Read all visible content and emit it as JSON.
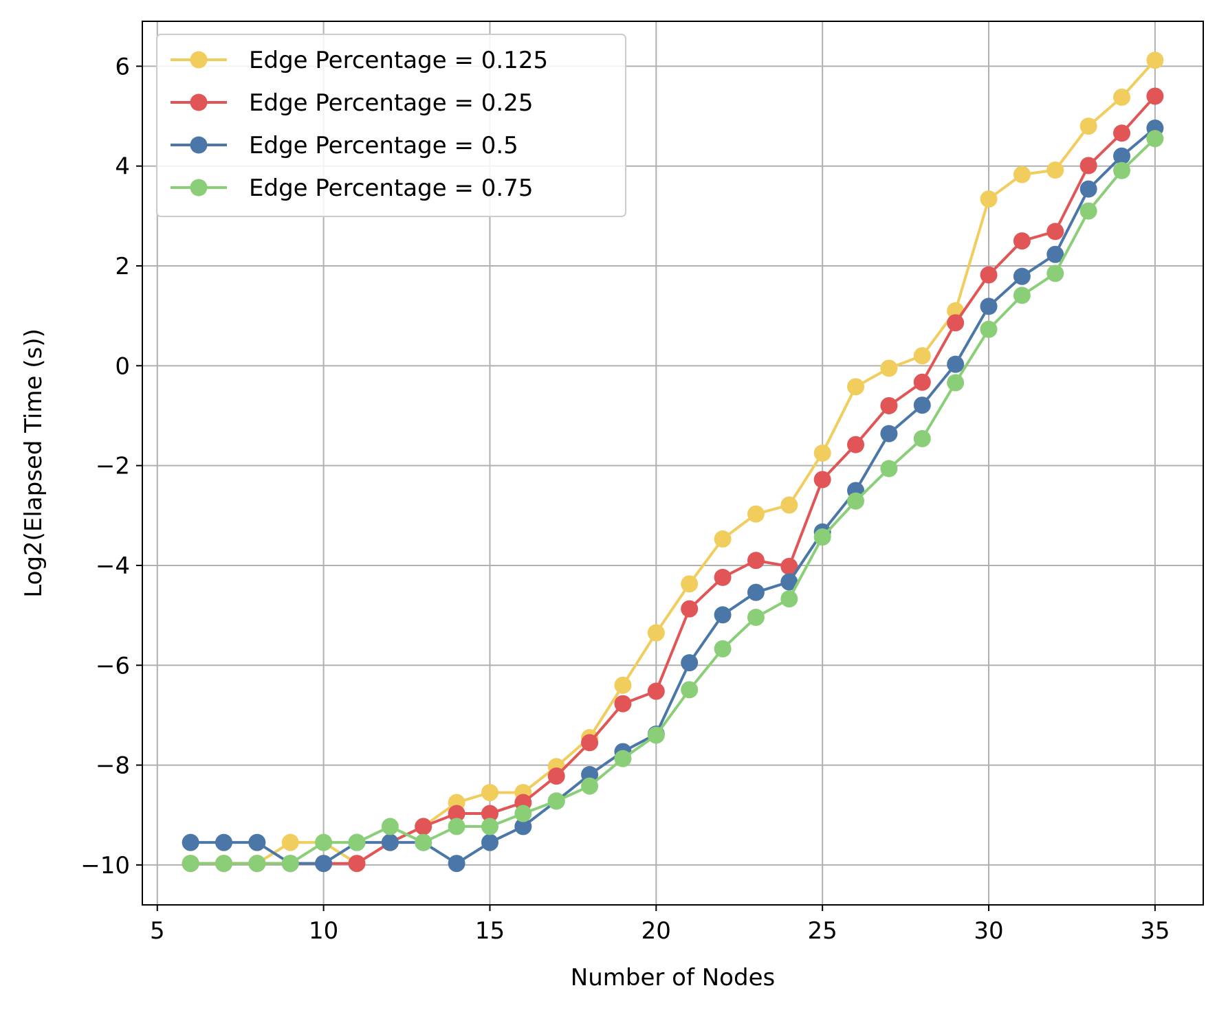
{
  "chart_data": {
    "type": "line",
    "title": "",
    "xlabel": "Number of Nodes",
    "ylabel": "Log2(Elapsed Time (s))",
    "xlim": [
      4.55,
      36.45
    ],
    "ylim": [
      -10.8,
      6.9
    ],
    "xticks": [
      5,
      10,
      15,
      20,
      25,
      30,
      35
    ],
    "yticks": [
      -10,
      -8,
      -6,
      -4,
      -2,
      0,
      2,
      4,
      6
    ],
    "xtick_labels": [
      "5",
      "10",
      "15",
      "20",
      "25",
      "30",
      "35"
    ],
    "ytick_labels": [
      "−10",
      "−8",
      "−6",
      "−4",
      "−2",
      "0",
      "2",
      "4",
      "6"
    ],
    "grid": true,
    "legend_position": "upper-left",
    "x": [
      6,
      7,
      8,
      9,
      10,
      11,
      12,
      13,
      14,
      15,
      16,
      17,
      18,
      19,
      20,
      21,
      22,
      23,
      24,
      25,
      26,
      27,
      28,
      29,
      30,
      31,
      32,
      33,
      34,
      35
    ],
    "series": [
      {
        "name": "Edge Percentage = 0.125",
        "color": "#F0CD5D",
        "values": [
          -9.97,
          -9.97,
          -9.97,
          -9.55,
          -9.55,
          -9.97,
          -9.55,
          -9.23,
          -8.75,
          -8.55,
          -8.55,
          -8.03,
          -7.45,
          -6.4,
          -5.35,
          -4.37,
          -3.47,
          -2.97,
          -2.79,
          -1.75,
          -0.42,
          -0.05,
          0.2,
          1.1,
          3.34,
          3.83,
          3.92,
          4.8,
          5.38,
          6.12
        ]
      },
      {
        "name": "Edge Percentage = 0.25",
        "color": "#E25557",
        "values": [
          -9.97,
          -9.97,
          -9.97,
          -9.97,
          -9.97,
          -9.97,
          -9.55,
          -9.23,
          -8.97,
          -8.97,
          -8.75,
          -8.22,
          -7.55,
          -6.77,
          -6.52,
          -4.87,
          -4.24,
          -3.9,
          -4.02,
          -2.28,
          -1.58,
          -0.8,
          -0.33,
          0.86,
          1.82,
          2.5,
          2.69,
          4.01,
          4.66,
          5.4
        ]
      },
      {
        "name": "Edge Percentage = 0.5",
        "color": "#4A76A8",
        "values": [
          -9.55,
          -9.55,
          -9.55,
          -9.97,
          -9.97,
          -9.55,
          -9.55,
          -9.55,
          -9.97,
          -9.55,
          -9.23,
          -8.72,
          -8.19,
          -7.73,
          -7.38,
          -5.95,
          -4.99,
          -4.54,
          -4.33,
          -3.33,
          -2.5,
          -1.36,
          -0.79,
          0.03,
          1.19,
          1.79,
          2.23,
          3.54,
          4.2,
          4.76
        ]
      },
      {
        "name": "Edge Percentage = 0.75",
        "color": "#8ACF78",
        "values": [
          -9.97,
          -9.97,
          -9.97,
          -9.97,
          -9.55,
          -9.55,
          -9.23,
          -9.55,
          -9.23,
          -9.23,
          -8.97,
          -8.72,
          -8.42,
          -7.87,
          -7.4,
          -6.49,
          -5.67,
          -5.04,
          -4.67,
          -3.43,
          -2.71,
          -2.06,
          -1.46,
          -0.34,
          0.73,
          1.41,
          1.85,
          3.1,
          3.91,
          4.55
        ]
      }
    ]
  }
}
